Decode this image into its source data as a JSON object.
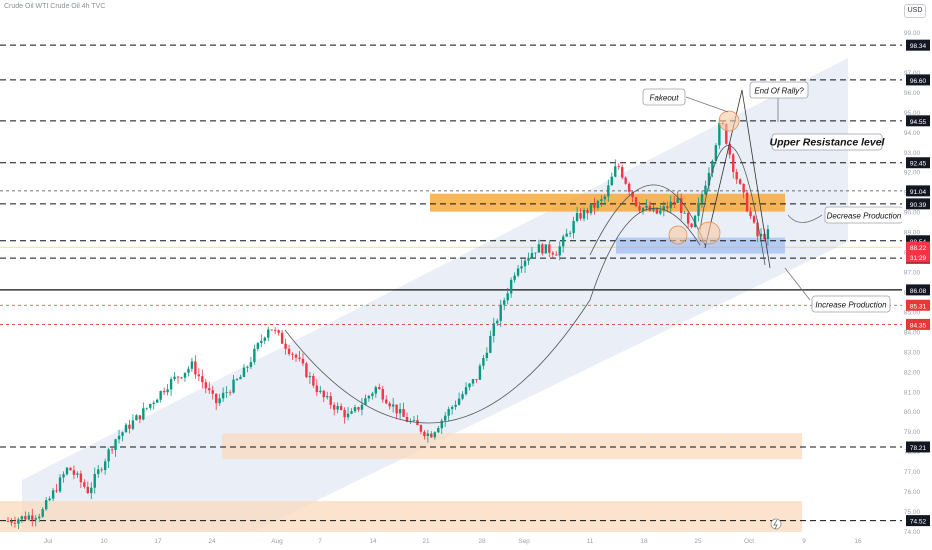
{
  "header": {
    "title": "Crude Oil WTI Crude Oil 4h TVC",
    "currency_button": "USD"
  },
  "chart_data": {
    "type": "candlestick",
    "y_range": [
      73.8,
      99.8
    ],
    "y_axis_ticks": [
      "99.00",
      "97.00",
      "96.00",
      "95.00",
      "94.00",
      "93.00",
      "92.00",
      "91.00",
      "90.00",
      "89.00",
      "88.00",
      "87.00",
      "86.00",
      "85.00",
      "84.00",
      "83.00",
      "82.00",
      "81.00",
      "80.00",
      "79.00",
      "78.00",
      "77.00",
      "76.00",
      "75.00",
      "74.00"
    ],
    "x_axis_ticks": [
      "Jul",
      "10",
      "17",
      "24",
      "Aug",
      "7",
      "14",
      "21",
      "28",
      "Sep",
      "11",
      "18",
      "25",
      "Oct",
      "9",
      "16"
    ],
    "candle_count": 220,
    "price_path_anchors": [
      [
        0,
        74.5
      ],
      [
        10,
        74.9
      ],
      [
        18,
        77.2
      ],
      [
        24,
        76.0
      ],
      [
        32,
        78.6
      ],
      [
        40,
        79.9
      ],
      [
        48,
        81.4
      ],
      [
        55,
        82.3
      ],
      [
        62,
        80.4
      ],
      [
        70,
        81.8
      ],
      [
        78,
        84.3
      ],
      [
        86,
        82.7
      ],
      [
        94,
        80.7
      ],
      [
        102,
        79.7
      ],
      [
        110,
        81.2
      ],
      [
        118,
        79.7
      ],
      [
        126,
        78.8
      ],
      [
        132,
        80.1
      ],
      [
        140,
        81.7
      ],
      [
        146,
        84.6
      ],
      [
        152,
        87.3
      ],
      [
        158,
        88.2
      ],
      [
        164,
        88.0
      ],
      [
        170,
        89.7
      ],
      [
        178,
        90.6
      ],
      [
        182,
        92.4
      ],
      [
        188,
        90.3
      ],
      [
        194,
        89.9
      ],
      [
        200,
        90.6
      ],
      [
        204,
        88.9
      ],
      [
        210,
        92.5
      ],
      [
        213,
        94.6
      ],
      [
        217,
        92.0
      ],
      [
        220,
        90.6
      ],
      [
        224,
        88.7
      ],
      [
        227,
        88.9
      ]
    ],
    "levels": [
      {
        "value": "98.34",
        "style": "dashed"
      },
      {
        "value": "96.60",
        "style": "dashed"
      },
      {
        "value": "94.55",
        "style": "dashed"
      },
      {
        "value": "92.45",
        "style": "dashed"
      },
      {
        "value": "91.04",
        "style": "dashed-thin"
      },
      {
        "value": "90.39",
        "style": "dashed"
      },
      {
        "value": "88.54",
        "style": "dashed"
      },
      {
        "value": "87.67",
        "style": "dashed"
      },
      {
        "value": "86.08",
        "style": "solid"
      },
      {
        "value": "85.31",
        "style": "dashed-red"
      },
      {
        "value": "84.35",
        "style": "dashed-red"
      },
      {
        "value": "78.21",
        "style": "dashed"
      },
      {
        "value": "74.52",
        "style": "dashed"
      }
    ],
    "current_price": {
      "value": "88.22",
      "countdown": "31:29"
    },
    "zones": [
      {
        "name": "orange-resistance-zone",
        "from": 90.0,
        "to": 90.9
      },
      {
        "name": "blue-support-zone",
        "from": 87.9,
        "to": 88.7
      },
      {
        "name": "lower-demand-zone-1",
        "from": 77.6,
        "to": 78.9
      },
      {
        "name": "lower-demand-zone-2",
        "from": 73.8,
        "to": 75.5
      }
    ],
    "annotations": [
      {
        "name": "fakeout",
        "text": "Fakeout"
      },
      {
        "name": "end-of-rally",
        "text": "End Of Rally?"
      },
      {
        "name": "upper-resistance",
        "text": "Upper Resistance level"
      },
      {
        "name": "decrease-production",
        "text": "Decrease Production"
      },
      {
        "name": "increase-production",
        "text": "Increase Production"
      }
    ],
    "colors": {
      "up": "#089981",
      "down": "#f23645",
      "zone_orange": "#f7a531",
      "zone_blue": "#a9c4f5",
      "channel": "#dfe6f3"
    }
  }
}
